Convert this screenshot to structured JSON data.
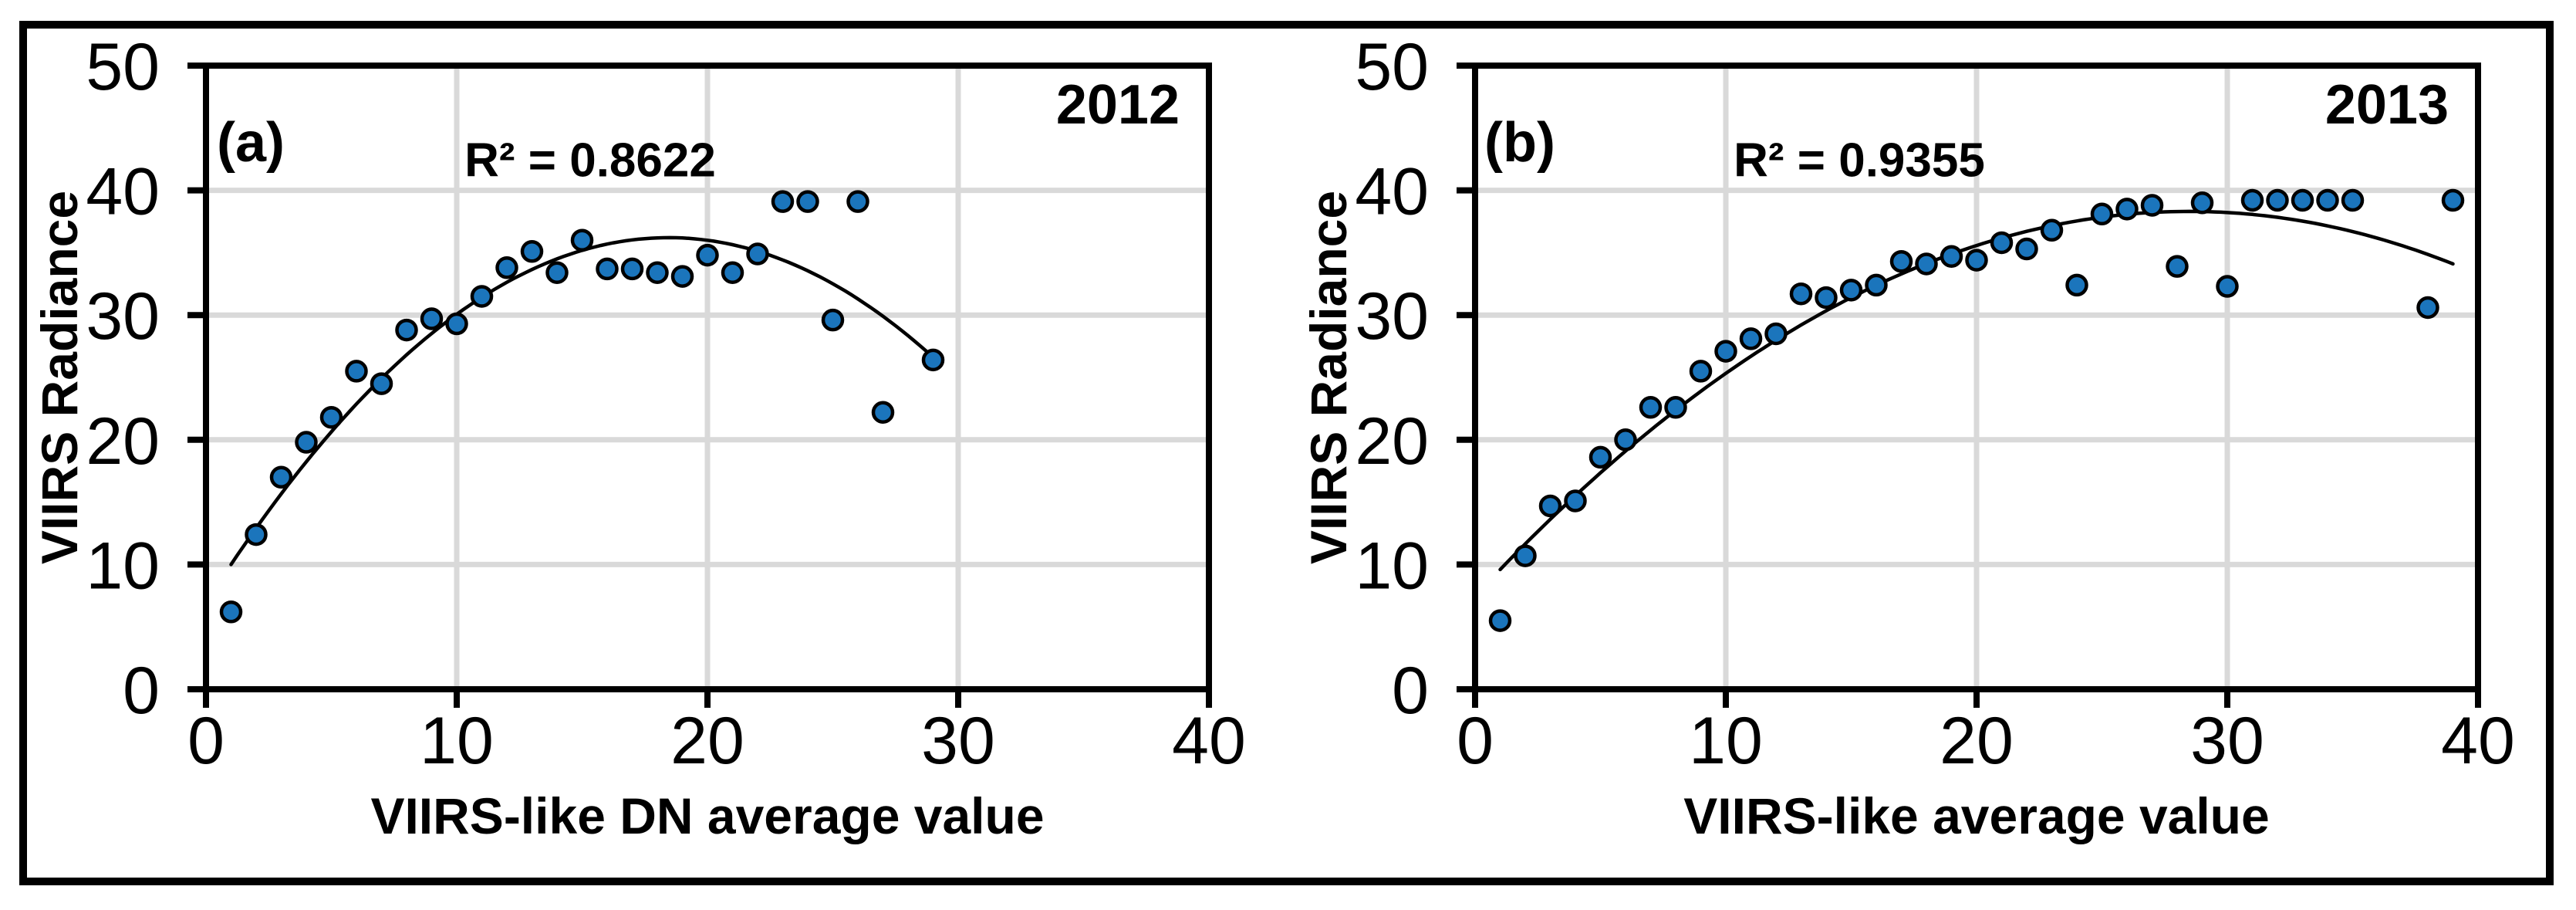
{
  "chart_data": [
    {
      "type": "scatter",
      "panel_label": "(a)",
      "year": "2012",
      "r2": "R² = 0.8622",
      "xlabel": "VIIRS-like DN average value",
      "ylabel": "VIIRS Radiance",
      "xlim": [
        0,
        40
      ],
      "ylim": [
        0,
        50
      ],
      "x_ticks": [
        "0",
        "10",
        "20",
        "30",
        "40"
      ],
      "y_ticks": [
        "0",
        "10",
        "20",
        "30",
        "40",
        "50"
      ],
      "x_tick_values": [
        0,
        10,
        20,
        30,
        40
      ],
      "y_tick_values": [
        0,
        10,
        20,
        30,
        40,
        50
      ],
      "x_gridlines": [
        10,
        20,
        30
      ],
      "y_gridlines": [
        10,
        20,
        30,
        40
      ],
      "grid": true,
      "legend": false,
      "marker_color": "#1B75BC",
      "marker_edge_color": "#000000",
      "gridline_color": "#D9D9D9",
      "points": [
        [
          1,
          6.2
        ],
        [
          2,
          12.4
        ],
        [
          3,
          17.0
        ],
        [
          4,
          19.8
        ],
        [
          5,
          21.8
        ],
        [
          6,
          25.5
        ],
        [
          7,
          24.5
        ],
        [
          8,
          28.8
        ],
        [
          9,
          29.7
        ],
        [
          10,
          29.3
        ],
        [
          11,
          31.5
        ],
        [
          12,
          33.8
        ],
        [
          13,
          35.1
        ],
        [
          14,
          33.4
        ],
        [
          15,
          36.0
        ],
        [
          16,
          33.7
        ],
        [
          17,
          33.7
        ],
        [
          18,
          33.4
        ],
        [
          19,
          33.1
        ],
        [
          20,
          34.8
        ],
        [
          21,
          33.4
        ],
        [
          22,
          34.9
        ],
        [
          23,
          39.1
        ],
        [
          24,
          39.1
        ],
        [
          25,
          29.6
        ],
        [
          26,
          39.1
        ],
        [
          27,
          22.2
        ],
        [
          29,
          26.4
        ]
      ],
      "trendline": {
        "type": "polynomial2",
        "coeffs": [
          6.91,
          3.1764,
          -0.0861
        ],
        "domain": [
          1,
          29
        ],
        "color": "#000000"
      }
    },
    {
      "type": "scatter",
      "panel_label": "(b)",
      "year": "2013",
      "r2": "R² = 0.9355",
      "xlabel": "VIIRS-like average value",
      "ylabel": "VIIRS Radiance",
      "xlim": [
        0,
        40
      ],
      "ylim": [
        0,
        50
      ],
      "x_ticks": [
        "0",
        "10",
        "20",
        "30",
        "40"
      ],
      "y_ticks": [
        "0",
        "10",
        "20",
        "30",
        "40",
        "50"
      ],
      "x_tick_values": [
        0,
        10,
        20,
        30,
        40
      ],
      "y_tick_values": [
        0,
        10,
        20,
        30,
        40,
        50
      ],
      "x_gridlines": [
        10,
        20,
        30
      ],
      "y_gridlines": [
        10,
        20,
        30,
        40
      ],
      "grid": true,
      "legend": false,
      "marker_color": "#1B75BC",
      "marker_edge_color": "#000000",
      "gridline_color": "#D9D9D9",
      "points": [
        [
          1,
          5.5
        ],
        [
          2,
          10.7
        ],
        [
          3,
          14.7
        ],
        [
          4,
          15.1
        ],
        [
          5,
          18.6
        ],
        [
          6,
          20.0
        ],
        [
          7,
          22.6
        ],
        [
          8,
          22.6
        ],
        [
          9,
          25.5
        ],
        [
          10,
          27.1
        ],
        [
          11,
          28.1
        ],
        [
          12,
          28.5
        ],
        [
          13,
          31.7
        ],
        [
          14,
          31.4
        ],
        [
          15,
          32.0
        ],
        [
          16,
          32.4
        ],
        [
          17,
          34.3
        ],
        [
          18,
          34.1
        ],
        [
          19,
          34.7
        ],
        [
          20,
          34.4
        ],
        [
          21,
          35.8
        ],
        [
          22,
          35.3
        ],
        [
          23,
          36.8
        ],
        [
          24,
          32.4
        ],
        [
          25,
          38.1
        ],
        [
          26,
          38.5
        ],
        [
          27,
          38.8
        ],
        [
          28,
          33.9
        ],
        [
          29,
          39.0
        ],
        [
          30,
          32.3
        ],
        [
          31,
          39.2
        ],
        [
          32,
          39.2
        ],
        [
          33,
          39.2
        ],
        [
          34,
          39.2
        ],
        [
          35,
          39.2
        ],
        [
          38,
          30.6
        ],
        [
          39,
          39.2
        ]
      ],
      "trendline": {
        "type": "polynomial2",
        "coeffs": [
          7.47248,
          2.16554,
          -0.03802
        ],
        "domain": [
          1,
          39
        ],
        "color": "#000000"
      }
    }
  ]
}
